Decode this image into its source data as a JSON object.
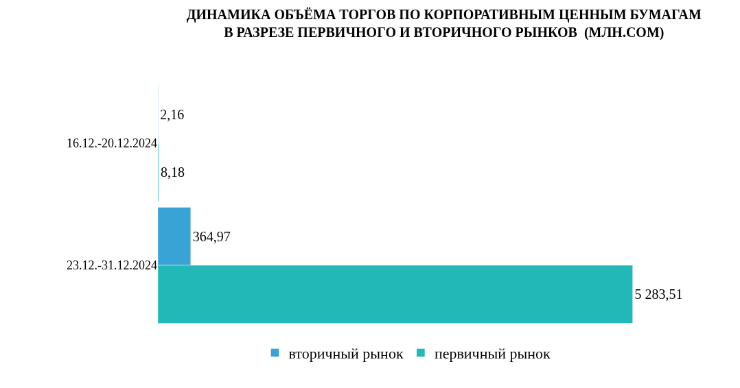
{
  "chart_data": {
    "type": "bar",
    "orientation": "horizontal",
    "title": "ДИНАМИКА ОБЪЁМА ТОРГОВ ПО КОРПОРАТИВНЫМ ЦЕННЫМ БУМАГАМ\nВ РАЗРЕЗЕ ПЕРВИЧНОГО И ВТОРИЧНОГО РЫНКОВ  (МЛН.СОМ)",
    "categories": [
      "16.12.-20.12.2024",
      "23.12.-31.12.2024"
    ],
    "series": [
      {
        "name": "вторичный рынок",
        "color": "#3aa3d6",
        "values": [
          2.16,
          364.97
        ],
        "value_labels": [
          "2,16",
          "364,97"
        ]
      },
      {
        "name": "первичный рынок",
        "color": "#22b8b8",
        "values": [
          8.18,
          5283.51
        ],
        "value_labels": [
          "8,18",
          "5 283,51"
        ]
      }
    ],
    "legend": "bottom"
  }
}
